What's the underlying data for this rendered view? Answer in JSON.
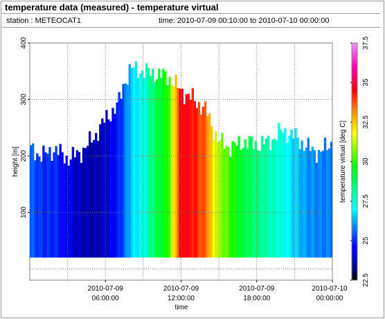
{
  "window": {
    "title": "temperature data (measured) - temperature virtual"
  },
  "info": {
    "station": "station : METEOCAT1",
    "time": "time: 2010-07-09 00:10:00 to 2010-07-10 00:00:00"
  },
  "chart_data": {
    "type": "heatmap",
    "title": "temperature data (measured) - temperature virtual",
    "xlabel": "time",
    "ylabel": "height [m]",
    "colorbar_label": "temperature virtual [deg C]",
    "xlim_hours": [
      0,
      24
    ],
    "ylim": [
      -20,
      400
    ],
    "y_ticks": [
      100,
      200,
      300,
      400
    ],
    "x_ticks": [
      {
        "hour": 6,
        "line1": "2010-07-09",
        "line2": "06:00:00"
      },
      {
        "hour": 12,
        "line1": "2010-07-09",
        "line2": "12:00:00"
      },
      {
        "hour": 18,
        "line1": "2010-07-09",
        "line2": "18:00:00"
      },
      {
        "hour": 24,
        "line1": "2010-07-10",
        "line2": "00:00:00"
      }
    ],
    "colorbar_range": [
      22.5,
      37.5
    ],
    "colorbar_ticks": [
      "22.5",
      "25",
      "27.5",
      "30",
      "32.5",
      "35",
      "37.5"
    ],
    "grid": true,
    "data_bottom_height": 20,
    "time_step_minutes": 10,
    "column_keypoints": [
      {
        "hour": 0.0,
        "top": 212,
        "temp": 25.5
      },
      {
        "hour": 1.0,
        "top": 200,
        "temp": 25.0
      },
      {
        "hour": 2.0,
        "top": 212,
        "temp": 25.0
      },
      {
        "hour": 3.0,
        "top": 195,
        "temp": 24.3
      },
      {
        "hour": 4.0,
        "top": 205,
        "temp": 23.8
      },
      {
        "hour": 5.0,
        "top": 230,
        "temp": 23.6
      },
      {
        "hour": 6.0,
        "top": 265,
        "temp": 23.9
      },
      {
        "hour": 7.0,
        "top": 290,
        "temp": 24.8
      },
      {
        "hour": 7.5,
        "top": 330,
        "temp": 25.5
      },
      {
        "hour": 8.0,
        "top": 355,
        "temp": 26.5
      },
      {
        "hour": 9.0,
        "top": 350,
        "temp": 27.3
      },
      {
        "hour": 10.0,
        "top": 345,
        "temp": 28.8
      },
      {
        "hour": 11.0,
        "top": 340,
        "temp": 30.0
      },
      {
        "hour": 12.0,
        "top": 315,
        "temp": 34.8
      },
      {
        "hour": 13.0,
        "top": 300,
        "temp": 34.3
      },
      {
        "hour": 14.0,
        "top": 280,
        "temp": 33.5
      },
      {
        "hour": 14.5,
        "top": 250,
        "temp": 32.0
      },
      {
        "hour": 15.0,
        "top": 225,
        "temp": 31.0
      },
      {
        "hour": 16.0,
        "top": 215,
        "temp": 30.0
      },
      {
        "hour": 17.0,
        "top": 225,
        "temp": 29.0
      },
      {
        "hour": 18.0,
        "top": 220,
        "temp": 28.4
      },
      {
        "hour": 19.0,
        "top": 225,
        "temp": 27.8
      },
      {
        "hour": 20.0,
        "top": 245,
        "temp": 27.3
      },
      {
        "hour": 21.0,
        "top": 235,
        "temp": 26.6
      },
      {
        "hour": 22.0,
        "top": 215,
        "temp": 26.0
      },
      {
        "hour": 23.0,
        "top": 205,
        "temp": 25.8
      },
      {
        "hour": 24.0,
        "top": 225,
        "temp": 25.8
      }
    ]
  }
}
